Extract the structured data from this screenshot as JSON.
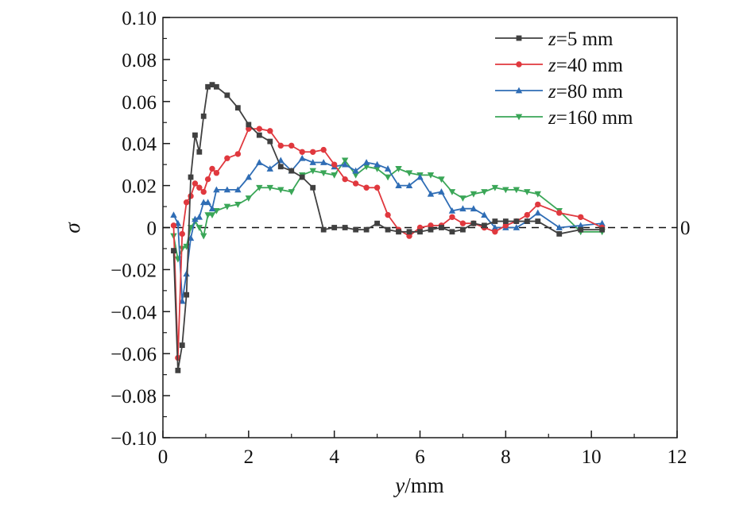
{
  "chart_data": {
    "type": "line",
    "title": "",
    "xlabel_var": "y",
    "xlabel_unit": "/mm",
    "ylabel": "σ",
    "xlim": [
      0,
      12
    ],
    "ylim": [
      -0.1,
      0.1
    ],
    "xticks": [
      0,
      2,
      4,
      6,
      8,
      10,
      12
    ],
    "xtick_labels": [
      "0",
      "2",
      "4",
      "6",
      "8",
      "10",
      "12"
    ],
    "yticks": [
      0.1,
      0.08,
      0.06,
      0.04,
      0.02,
      0,
      -0.02,
      -0.04,
      -0.06,
      -0.08,
      -0.1
    ],
    "ytick_labels": [
      "0.10",
      "0.08",
      "0.06",
      "0.04",
      "0.02",
      "0",
      "−0.02",
      "−0.04",
      "−0.06",
      "−0.08",
      "−0.10"
    ],
    "reference_line": {
      "y": 0,
      "style": "dashed",
      "label": "0"
    },
    "legend_position": "top-right",
    "series": [
      {
        "name": "z=5 mm",
        "legend_var": "z",
        "legend_rest": "=5 mm",
        "color": "#404040",
        "marker": "square",
        "x": [
          0.25,
          0.35,
          0.45,
          0.55,
          0.65,
          0.75,
          0.85,
          0.95,
          1.05,
          1.15,
          1.25,
          1.5,
          1.75,
          2.0,
          2.25,
          2.5,
          2.75,
          3.0,
          3.25,
          3.5,
          3.75,
          4.0,
          4.25,
          4.5,
          4.75,
          5.0,
          5.25,
          5.5,
          5.75,
          6.0,
          6.25,
          6.5,
          6.75,
          7.0,
          7.25,
          7.5,
          7.75,
          8.0,
          8.25,
          8.5,
          8.75,
          9.25,
          9.75,
          10.25
        ],
        "y": [
          -0.011,
          -0.068,
          -0.056,
          -0.032,
          0.024,
          0.044,
          0.036,
          0.053,
          0.067,
          0.068,
          0.067,
          0.063,
          0.057,
          0.049,
          0.044,
          0.041,
          0.029,
          0.027,
          0.024,
          0.019,
          -0.001,
          0.0,
          0.0,
          -0.001,
          -0.001,
          0.002,
          -0.001,
          -0.002,
          -0.002,
          -0.002,
          -0.001,
          0.0,
          -0.002,
          -0.001,
          0.002,
          0.001,
          0.003,
          0.003,
          0.003,
          0.003,
          0.003,
          -0.003,
          -0.001,
          -0.001
        ]
      },
      {
        "name": "z=40 mm",
        "legend_var": "z",
        "legend_rest": "=40 mm",
        "color": "#e0383e",
        "marker": "circle",
        "x": [
          0.25,
          0.35,
          0.45,
          0.55,
          0.65,
          0.75,
          0.85,
          0.95,
          1.05,
          1.15,
          1.25,
          1.5,
          1.75,
          2.0,
          2.25,
          2.5,
          2.75,
          3.0,
          3.25,
          3.5,
          3.75,
          4.0,
          4.25,
          4.5,
          4.75,
          5.0,
          5.25,
          5.5,
          5.75,
          6.0,
          6.25,
          6.5,
          6.75,
          7.0,
          7.25,
          7.5,
          7.75,
          8.0,
          8.25,
          8.5,
          8.75,
          9.25,
          9.75,
          10.25
        ],
        "y": [
          0.001,
          -0.062,
          -0.003,
          0.012,
          0.015,
          0.021,
          0.019,
          0.017,
          0.023,
          0.028,
          0.026,
          0.033,
          0.035,
          0.047,
          0.047,
          0.046,
          0.039,
          0.039,
          0.036,
          0.036,
          0.037,
          0.03,
          0.023,
          0.021,
          0.019,
          0.019,
          0.006,
          -0.001,
          -0.004,
          0.0,
          0.001,
          0.001,
          0.005,
          0.002,
          0.002,
          0.0,
          -0.002,
          0.001,
          0.003,
          0.006,
          0.011,
          0.007,
          0.005,
          0.0
        ]
      },
      {
        "name": "z=80 mm",
        "legend_var": "z",
        "legend_rest": "=80 mm",
        "color": "#2f6db5",
        "marker": "triangle-up",
        "x": [
          0.25,
          0.35,
          0.45,
          0.55,
          0.65,
          0.75,
          0.85,
          0.95,
          1.05,
          1.15,
          1.25,
          1.5,
          1.75,
          2.0,
          2.25,
          2.5,
          2.75,
          3.0,
          3.25,
          3.5,
          3.75,
          4.0,
          4.25,
          4.5,
          4.75,
          5.0,
          5.25,
          5.5,
          5.75,
          6.0,
          6.25,
          6.5,
          6.75,
          7.0,
          7.25,
          7.5,
          7.75,
          8.0,
          8.25,
          8.5,
          8.75,
          9.25,
          9.75,
          10.25
        ],
        "y": [
          0.006,
          0.002,
          -0.035,
          -0.022,
          -0.005,
          0.004,
          0.005,
          0.012,
          0.012,
          0.009,
          0.018,
          0.018,
          0.018,
          0.024,
          0.031,
          0.028,
          0.032,
          0.027,
          0.033,
          0.031,
          0.031,
          0.029,
          0.03,
          0.027,
          0.031,
          0.03,
          0.028,
          0.02,
          0.02,
          0.024,
          0.016,
          0.017,
          0.008,
          0.009,
          0.009,
          0.006,
          0.0,
          0.0,
          0.0,
          0.003,
          0.007,
          0.0,
          0.001,
          0.002
        ]
      },
      {
        "name": "z=160 mm",
        "legend_var": "z",
        "legend_rest": "=160 mm",
        "color": "#3aa657",
        "marker": "triangle-down",
        "x": [
          0.25,
          0.35,
          0.45,
          0.55,
          0.65,
          0.75,
          0.85,
          0.95,
          1.05,
          1.15,
          1.25,
          1.5,
          1.75,
          2.0,
          2.25,
          2.5,
          2.75,
          3.0,
          3.25,
          3.5,
          3.75,
          4.0,
          4.25,
          4.5,
          4.75,
          5.0,
          5.25,
          5.5,
          5.75,
          6.0,
          6.25,
          6.5,
          6.75,
          7.0,
          7.25,
          7.5,
          7.75,
          8.0,
          8.25,
          8.5,
          8.75,
          9.25,
          9.75,
          10.25
        ],
        "y": [
          -0.004,
          -0.015,
          -0.01,
          -0.009,
          0.0,
          0.003,
          0.0,
          -0.004,
          0.006,
          0.006,
          0.008,
          0.01,
          0.011,
          0.014,
          0.019,
          0.019,
          0.018,
          0.017,
          0.025,
          0.027,
          0.026,
          0.025,
          0.032,
          0.025,
          0.029,
          0.028,
          0.024,
          0.028,
          0.026,
          0.025,
          0.025,
          0.023,
          0.017,
          0.014,
          0.016,
          0.017,
          0.019,
          0.018,
          0.018,
          0.017,
          0.016,
          0.008,
          -0.002,
          -0.002
        ]
      }
    ]
  }
}
